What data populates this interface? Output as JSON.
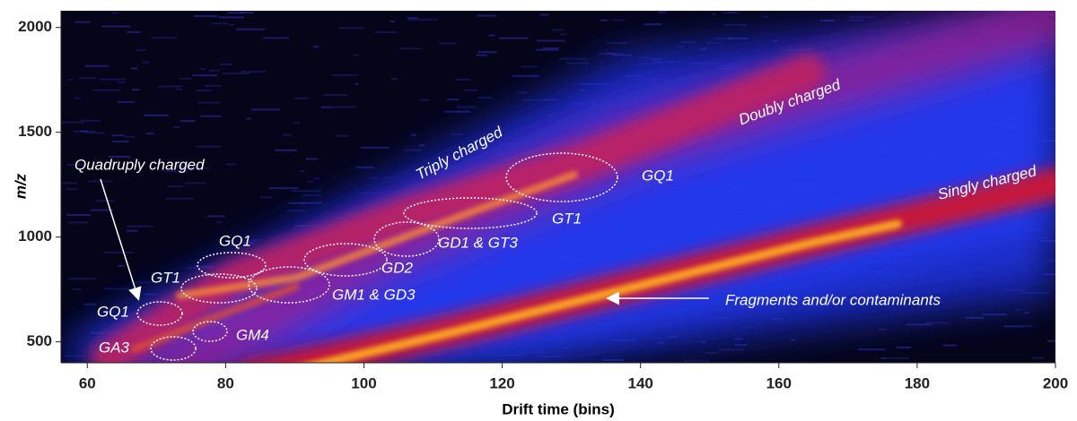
{
  "chart_data": {
    "type": "heatmap",
    "xlabel": "Drift time (bins)",
    "ylabel": "m/z",
    "xlim": [
      56.2,
      200
    ],
    "xticks": [
      60,
      80,
      100,
      120,
      140,
      160,
      180,
      200
    ],
    "ylim": [
      400,
      2080
    ],
    "yticks": [
      500,
      1000,
      1500,
      2000
    ],
    "annotations": [
      "Quadruply charged",
      "Triply charged",
      "Doubly charged",
      "Singly charged",
      "GQ1",
      "GT1",
      "GD1 & GT3",
      "GD2",
      "GM1 & GD3",
      "GQ1",
      "GT1",
      "GQ1",
      "GM4",
      "GA3",
      "Fragments and/or contaminants"
    ]
  }
}
